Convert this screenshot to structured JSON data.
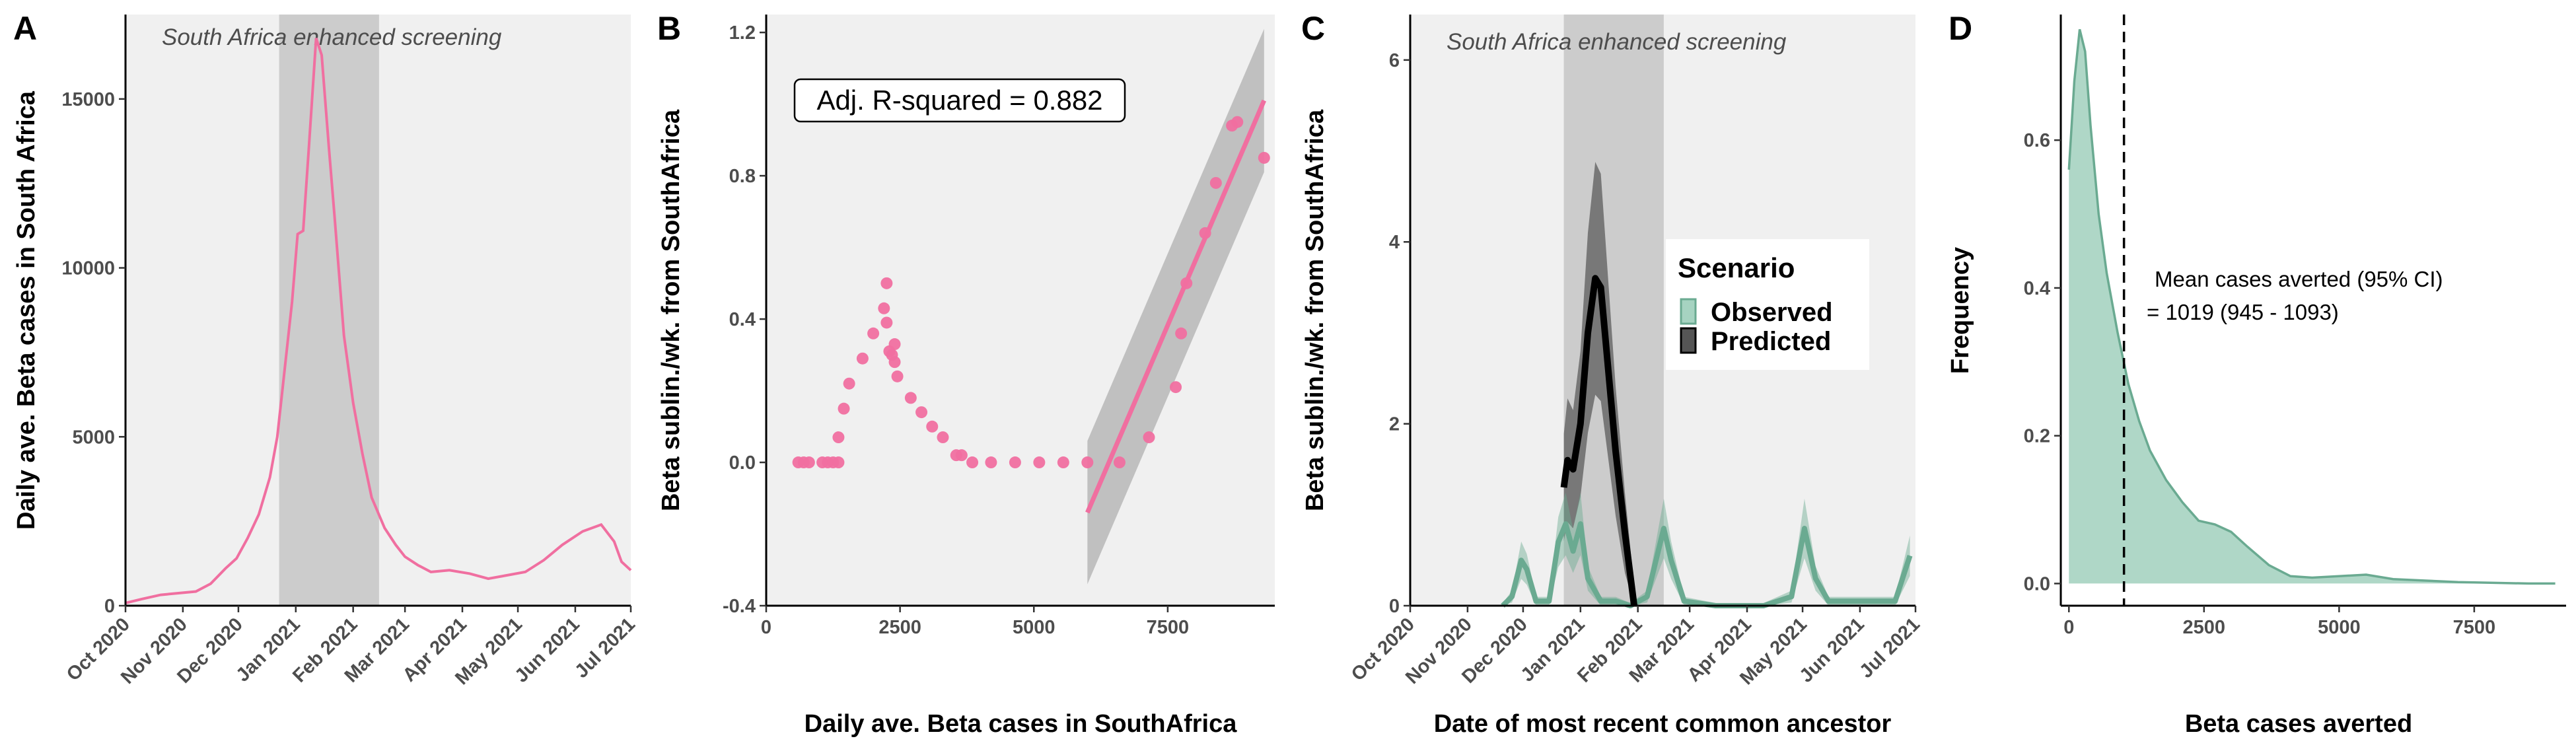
{
  "chart_data": [
    {
      "panel": "A",
      "type": "line",
      "xlabel": "",
      "ylabel": "Daily ave. Beta cases in South Africa",
      "ylim": [
        0,
        17500
      ],
      "y_ticks": [
        0,
        5000,
        10000,
        15000
      ],
      "y_tick_labels": [
        "0",
        "5000",
        "10000",
        "15000"
      ],
      "x_tick_labels": [
        "Oct 2020",
        "Nov 2020",
        "Dec 2020",
        "Jan 2021",
        "Feb 2021",
        "Mar 2021",
        "Apr 2021",
        "May 2021",
        "Jun 2021",
        "Jul 2021"
      ],
      "shaded_region": {
        "label": "South Africa enhanced screening",
        "from": "2020-12-23",
        "to": "2021-02-15",
        "color": "#cccccc"
      },
      "grid": false,
      "series": [
        {
          "color": "#f06fa0",
          "points": [
            [
              "2020-10-01",
              80
            ],
            [
              "2020-10-10",
              200
            ],
            [
              "2020-10-20",
              320
            ],
            [
              "2020-10-31",
              380
            ],
            [
              "2020-11-08",
              420
            ],
            [
              "2020-11-16",
              650
            ],
            [
              "2020-11-24",
              1100
            ],
            [
              "2020-11-30",
              1400
            ],
            [
              "2020-12-06",
              2000
            ],
            [
              "2020-12-12",
              2700
            ],
            [
              "2020-12-18",
              3800
            ],
            [
              "2020-12-22",
              5000
            ],
            [
              "2020-12-26",
              7000
            ],
            [
              "2020-12-30",
              9000
            ],
            [
              "2021-01-02",
              11000
            ],
            [
              "2021-01-05",
              11100
            ],
            [
              "2021-01-08",
              13500
            ],
            [
              "2021-01-12",
              16800
            ],
            [
              "2021-01-15",
              16300
            ],
            [
              "2021-01-19",
              13500
            ],
            [
              "2021-01-22",
              11500
            ],
            [
              "2021-01-27",
              8000
            ],
            [
              "2021-02-01",
              6000
            ],
            [
              "2021-02-06",
              4500
            ],
            [
              "2021-02-11",
              3200
            ],
            [
              "2021-02-18",
              2300
            ],
            [
              "2021-02-24",
              1800
            ],
            [
              "2021-03-01",
              1450
            ],
            [
              "2021-03-08",
              1200
            ],
            [
              "2021-03-15",
              1000
            ],
            [
              "2021-03-25",
              1050
            ],
            [
              "2021-04-05",
              950
            ],
            [
              "2021-04-15",
              800
            ],
            [
              "2021-04-25",
              900
            ],
            [
              "2021-05-05",
              1000
            ],
            [
              "2021-05-15",
              1350
            ],
            [
              "2021-05-25",
              1800
            ],
            [
              "2021-06-05",
              2200
            ],
            [
              "2021-06-15",
              2400
            ],
            [
              "2021-06-22",
              1900
            ],
            [
              "2021-06-26",
              1300
            ],
            [
              "2021-07-01",
              1050
            ]
          ]
        }
      ]
    },
    {
      "panel": "B",
      "type": "scatter",
      "xlabel": "Daily ave. Beta cases in SouthAfrica",
      "ylabel": "Beta sublin./wk. from SouthAfrica",
      "xlim": [
        0,
        9500
      ],
      "ylim": [
        -0.4,
        1.25
      ],
      "x_ticks": [
        0,
        2500,
        5000,
        7500
      ],
      "x_tick_labels": [
        "0",
        "2500",
        "5000",
        "7500"
      ],
      "y_ticks": [
        -0.4,
        0.0,
        0.4,
        0.8,
        1.2
      ],
      "y_tick_labels": [
        "-0.4",
        "0.0",
        "0.4",
        "0.8",
        "1.2"
      ],
      "annotation": "Adj. R-squared = 0.882",
      "grid": false,
      "series": [
        {
          "color": "#f06fa0",
          "points": [
            [
              600,
              0
            ],
            [
              700,
              0
            ],
            [
              800,
              0
            ],
            [
              1050,
              0
            ],
            [
              1150,
              0
            ],
            [
              1250,
              0
            ],
            [
              1350,
              0
            ],
            [
              1350,
              0.07
            ],
            [
              1450,
              0.15
            ],
            [
              1550,
              0.22
            ],
            [
              1800,
              0.29
            ],
            [
              2000,
              0.36
            ],
            [
              2200,
              0.43
            ],
            [
              2250,
              0.39
            ],
            [
              2250,
              0.5
            ],
            [
              2300,
              0.31
            ],
            [
              2350,
              0.3
            ],
            [
              2400,
              0.33
            ],
            [
              2400,
              0.28
            ],
            [
              2450,
              0.24
            ],
            [
              2700,
              0.18
            ],
            [
              2900,
              0.14
            ],
            [
              3100,
              0.1
            ],
            [
              3300,
              0.07
            ],
            [
              3550,
              0.02
            ],
            [
              3650,
              0.02
            ],
            [
              3850,
              0
            ],
            [
              4200,
              0
            ],
            [
              4650,
              0
            ],
            [
              5100,
              0
            ],
            [
              5550,
              0
            ],
            [
              6000,
              0
            ],
            [
              6600,
              0
            ],
            [
              7150,
              0.07
            ],
            [
              7650,
              0.21
            ],
            [
              7750,
              0.36
            ],
            [
              7850,
              0.5
            ],
            [
              8200,
              0.64
            ],
            [
              8400,
              0.78
            ],
            [
              8700,
              0.94
            ],
            [
              8800,
              0.95
            ],
            [
              9300,
              0.85
            ]
          ]
        }
      ],
      "fit": {
        "from_x": 6000,
        "to_x": 9300,
        "from_y": -0.14,
        "to_y": 1.01,
        "ci_lower_start": -0.34,
        "ci_upper_start": 0.06,
        "ci_lower_end": 0.81,
        "ci_upper_end": 1.21,
        "color": "#f06fa0"
      }
    },
    {
      "panel": "C",
      "type": "line",
      "xlabel": "Date of most recent common ancestor",
      "ylabel": "Beta sublin./wk. from SouthAfrica",
      "ylim": [
        0,
        6.5
      ],
      "y_ticks": [
        0,
        2,
        4,
        6
      ],
      "y_tick_labels": [
        "0",
        "2",
        "4",
        "6"
      ],
      "x_tick_labels": [
        "Oct 2020",
        "Nov 2020",
        "Dec 2020",
        "Jan 2021",
        "Feb 2021",
        "Mar 2021",
        "Apr 2021",
        "May 2021",
        "Jun 2021",
        "Jul 2021"
      ],
      "shaded_region": {
        "label": "South Africa enhanced screening",
        "from": "2020-12-23",
        "to": "2021-02-15",
        "color": "#cccccc"
      },
      "legend": {
        "title": "Scenario",
        "position": "right"
      },
      "grid": false,
      "series": [
        {
          "name": "Observed",
          "color": "#6aaa91",
          "points": [
            [
              "2020-11-20",
              0
            ],
            [
              "2020-11-25",
              0.1
            ],
            [
              "2020-11-30",
              0.5
            ],
            [
              "2020-12-03",
              0.4
            ],
            [
              "2020-12-08",
              0.05
            ],
            [
              "2020-12-15",
              0.05
            ],
            [
              "2020-12-20",
              0.7
            ],
            [
              "2020-12-24",
              0.9
            ],
            [
              "2020-12-28",
              0.6
            ],
            [
              "2021-01-01",
              0.9
            ],
            [
              "2021-01-05",
              0.3
            ],
            [
              "2021-01-12",
              0.05
            ],
            [
              "2021-01-20",
              0.05
            ],
            [
              "2021-01-28",
              0
            ],
            [
              "2021-02-06",
              0.1
            ],
            [
              "2021-02-12",
              0.6
            ],
            [
              "2021-02-15",
              0.85
            ],
            [
              "2021-02-19",
              0.5
            ],
            [
              "2021-02-26",
              0.05
            ],
            [
              "2021-03-15",
              0
            ],
            [
              "2021-04-10",
              0
            ],
            [
              "2021-04-25",
              0.1
            ],
            [
              "2021-05-02",
              0.85
            ],
            [
              "2021-05-08",
              0.3
            ],
            [
              "2021-05-15",
              0.05
            ],
            [
              "2021-06-05",
              0.05
            ],
            [
              "2021-06-20",
              0.05
            ],
            [
              "2021-06-28",
              0.55
            ]
          ]
        },
        {
          "name": "Predicted",
          "color": "#000000",
          "points": [
            [
              "2020-12-23",
              1.3
            ],
            [
              "2020-12-25",
              1.6
            ],
            [
              "2020-12-28",
              1.5
            ],
            [
              "2021-01-01",
              2.0
            ],
            [
              "2021-01-05",
              3.0
            ],
            [
              "2021-01-09",
              3.6
            ],
            [
              "2021-01-12",
              3.5
            ],
            [
              "2021-01-16",
              2.6
            ],
            [
              "2021-01-20",
              1.7
            ],
            [
              "2021-01-25",
              0.8
            ],
            [
              "2021-01-30",
              0
            ]
          ]
        }
      ]
    },
    {
      "panel": "D",
      "type": "area",
      "xlabel": "Beta cases averted",
      "ylabel": "Frequency",
      "xlim": [
        -150,
        9200
      ],
      "ylim": [
        -0.03,
        0.77
      ],
      "x_ticks": [
        0,
        2500,
        5000,
        7500
      ],
      "x_tick_labels": [
        "0",
        "2500",
        "5000",
        "7500"
      ],
      "y_ticks": [
        0.0,
        0.2,
        0.4,
        0.6
      ],
      "y_tick_labels": [
        "0.0",
        "0.2",
        "0.4",
        "0.6"
      ],
      "vline": {
        "x": 1019,
        "style": "dashed"
      },
      "annotation_lines": [
        "Mean cases averted (95% CI)",
        "= 1019 (945 - 1093)"
      ],
      "grid": false,
      "series": [
        {
          "color": "#6aaa91",
          "fill": "#a6d3c1",
          "points": [
            [
              0,
              0.56
            ],
            [
              100,
              0.68
            ],
            [
              200,
              0.75
            ],
            [
              300,
              0.72
            ],
            [
              400,
              0.62
            ],
            [
              550,
              0.5
            ],
            [
              700,
              0.42
            ],
            [
              900,
              0.34
            ],
            [
              1100,
              0.27
            ],
            [
              1300,
              0.22
            ],
            [
              1500,
              0.18
            ],
            [
              1800,
              0.14
            ],
            [
              2100,
              0.11
            ],
            [
              2400,
              0.085
            ],
            [
              2700,
              0.08
            ],
            [
              3000,
              0.07
            ],
            [
              3300,
              0.05
            ],
            [
              3700,
              0.025
            ],
            [
              4100,
              0.01
            ],
            [
              4500,
              0.008
            ],
            [
              5000,
              0.01
            ],
            [
              5500,
              0.012
            ],
            [
              6000,
              0.006
            ],
            [
              6600,
              0.004
            ],
            [
              7200,
              0.002
            ],
            [
              7800,
              0.001
            ],
            [
              8500,
              0
            ],
            [
              9000,
              0
            ]
          ]
        }
      ]
    }
  ]
}
